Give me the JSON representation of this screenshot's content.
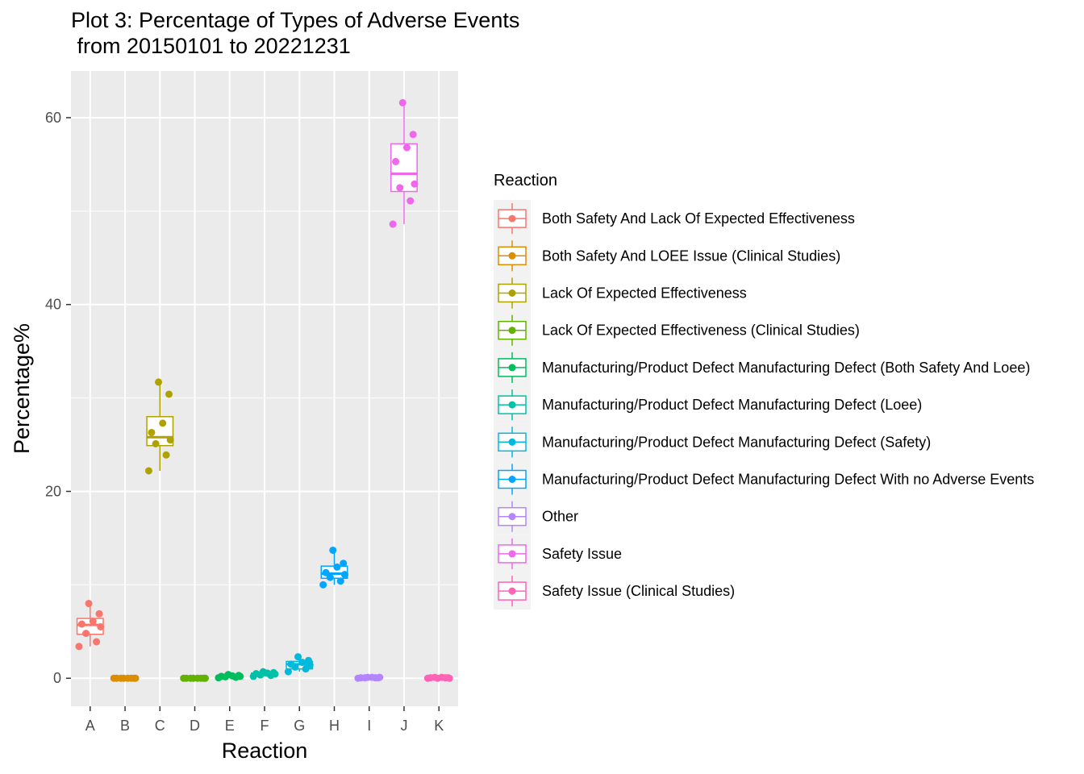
{
  "chart_data": {
    "type": "boxplot",
    "title_line1": "Plot 3: Percentage of Types of Adverse Events",
    "title_line2": " from 20150101 to 20221231",
    "xlabel": "Reaction",
    "ylabel": "Percentage%",
    "ylim": [
      -3,
      65
    ],
    "yticks": [
      0,
      20,
      40,
      60
    ],
    "grid": true,
    "legend_position": "right",
    "legend_title": "Reaction",
    "categories": [
      "A",
      "B",
      "C",
      "D",
      "E",
      "F",
      "G",
      "H",
      "I",
      "J",
      "K"
    ],
    "series": [
      {
        "category": "A",
        "name": "Both Safety And Lack Of Expected Effectiveness",
        "color": "#F8766D",
        "box": {
          "q1": 4.7,
          "median": 5.7,
          "q3": 6.4,
          "whisker_low": 3.4,
          "whisker_high": 8.0
        },
        "points": [
          3.4,
          3.9,
          4.8,
          5.5,
          5.8,
          6.1,
          6.9,
          8.0
        ]
      },
      {
        "category": "B",
        "name": "Both Safety And LOEE Issue (Clinical Studies)",
        "color": "#DB8E00",
        "box": {
          "q1": 0.0,
          "median": 0.0,
          "q3": 0.05,
          "whisker_low": 0.0,
          "whisker_high": 0.05
        },
        "points": [
          0.0,
          0.0,
          0.0,
          0.0,
          0.0,
          0.0,
          0.0,
          0.0
        ]
      },
      {
        "category": "C",
        "name": "Lack Of Expected Effectiveness",
        "color": "#AEA200",
        "box": {
          "q1": 24.9,
          "median": 25.8,
          "q3": 28.0,
          "whisker_low": 22.2,
          "whisker_high": 31.7
        },
        "points": [
          22.2,
          23.9,
          25.1,
          25.5,
          26.3,
          27.3,
          30.4,
          31.7
        ]
      },
      {
        "category": "D",
        "name": "Lack Of Expected Effectiveness (Clinical Studies)",
        "color": "#64B200",
        "box": {
          "q1": 0.0,
          "median": 0.0,
          "q3": 0.05,
          "whisker_low": 0.0,
          "whisker_high": 0.05
        },
        "points": [
          0.0,
          0.0,
          0.0,
          0.0,
          0.0,
          0.0,
          0.0,
          0.0
        ]
      },
      {
        "category": "E",
        "name": "Manufacturing/Product Defect Manufacturing Defect (Both Safety And Loee)",
        "color": "#00BD5C",
        "box": {
          "q1": 0.1,
          "median": 0.2,
          "q3": 0.3,
          "whisker_low": 0.05,
          "whisker_high": 0.4
        },
        "points": [
          0.05,
          0.1,
          0.15,
          0.2,
          0.2,
          0.25,
          0.3,
          0.4
        ]
      },
      {
        "category": "F",
        "name": "Manufacturing/Product Defect Manufacturing Defect (Loee)",
        "color": "#00C1A7",
        "box": {
          "q1": 0.3,
          "median": 0.45,
          "q3": 0.55,
          "whisker_low": 0.2,
          "whisker_high": 0.7
        },
        "points": [
          0.2,
          0.3,
          0.35,
          0.45,
          0.5,
          0.55,
          0.6,
          0.7
        ]
      },
      {
        "category": "G",
        "name": "Manufacturing/Product Defect Manufacturing Defect (Safety)",
        "color": "#00BADE",
        "box": {
          "q1": 1.0,
          "median": 1.5,
          "q3": 1.8,
          "whisker_low": 0.7,
          "whisker_high": 2.3
        },
        "points": [
          0.7,
          1.0,
          1.2,
          1.4,
          1.5,
          1.7,
          1.9,
          2.3
        ]
      },
      {
        "category": "H",
        "name": "Manufacturing/Product Defect Manufacturing Defect With no Adverse Events",
        "color": "#00A6FF",
        "box": {
          "q1": 10.7,
          "median": 11.2,
          "q3": 12.0,
          "whisker_low": 10.0,
          "whisker_high": 13.7
        },
        "points": [
          10.0,
          10.4,
          10.8,
          11.1,
          11.3,
          11.9,
          12.3,
          13.7
        ]
      },
      {
        "category": "I",
        "name": "Other",
        "color": "#B385FF",
        "box": {
          "q1": 0.0,
          "median": 0.05,
          "q3": 0.1,
          "whisker_low": 0.0,
          "whisker_high": 0.15
        },
        "points": [
          0.0,
          0.05,
          0.05,
          0.1,
          0.05,
          0.1,
          0.05,
          0.1
        ]
      },
      {
        "category": "J",
        "name": "Safety Issue",
        "color": "#EF67EB",
        "box": {
          "q1": 52.1,
          "median": 54.0,
          "q3": 57.2,
          "whisker_low": 48.6,
          "whisker_high": 61.6
        },
        "points": [
          48.6,
          51.1,
          52.5,
          52.9,
          55.3,
          56.8,
          58.2,
          61.6
        ]
      },
      {
        "category": "K",
        "name": "Safety Issue (Clinical Studies)",
        "color": "#FF63B6",
        "box": {
          "q1": 0.0,
          "median": 0.05,
          "q3": 0.1,
          "whisker_low": 0.0,
          "whisker_high": 0.1
        },
        "points": [
          0.0,
          0.05,
          0.1,
          0.0,
          0.05,
          0.1,
          0.05,
          0.0
        ]
      }
    ]
  }
}
